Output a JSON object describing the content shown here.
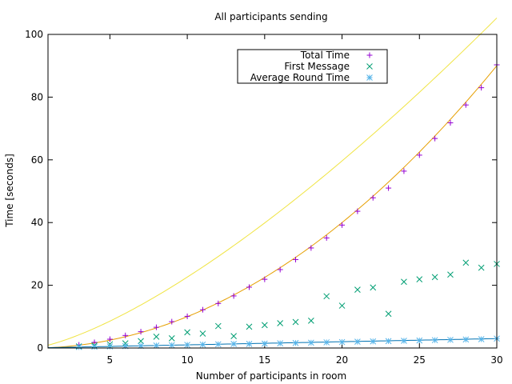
{
  "chart_data": {
    "type": "scatter",
    "title": "All participants sending",
    "xlabel": "Number of participants in room",
    "ylabel": "Time [seconds]",
    "xlim": [
      1,
      30
    ],
    "ylim": [
      0,
      100
    ],
    "x_ticks": [
      5,
      10,
      15,
      20,
      25,
      30
    ],
    "y_ticks": [
      0,
      20,
      40,
      60,
      80,
      100
    ],
    "grid": false,
    "legend_position": "top-center",
    "x": [
      3,
      4,
      5,
      6,
      7,
      8,
      9,
      10,
      11,
      12,
      13,
      14,
      15,
      16,
      17,
      18,
      19,
      20,
      21,
      22,
      23,
      24,
      25,
      26,
      27,
      28,
      29,
      30
    ],
    "series": [
      {
        "name": "Total Time",
        "marker": "plus",
        "color": "#9400d3",
        "values": [
          1.0,
          1.8,
          2.8,
          4.0,
          5.2,
          6.6,
          8.4,
          10.1,
          12.2,
          14.2,
          16.6,
          19.4,
          21.9,
          25.0,
          28.2,
          31.9,
          35.1,
          39.2,
          43.6,
          47.9,
          51.0,
          56.4,
          61.5,
          66.8,
          71.8,
          77.5,
          83.0,
          90.3
        ],
        "fit_color": "#e69f00",
        "fit": {
          "a": 0.1,
          "p": 2
        }
      },
      {
        "name": "First Message",
        "marker": "cross",
        "color": "#009e73",
        "values": [
          0.5,
          0.8,
          1.2,
          1.5,
          2.2,
          3.6,
          3.1,
          5.0,
          4.6,
          7.0,
          3.8,
          6.8,
          7.3,
          7.9,
          8.3,
          8.7,
          16.5,
          13.5,
          18.6,
          19.3,
          10.9,
          21.1,
          21.9,
          22.6,
          23.4,
          27.2,
          25.6,
          26.8
        ],
        "fit_color": "#f0e442",
        "fit": {
          "a": 0.9,
          "p": 1.4
        }
      },
      {
        "name": "Average Round Time",
        "marker": "star",
        "color": "#56b4e9",
        "values": [
          0.3,
          0.4,
          0.5,
          0.6,
          0.7,
          0.8,
          0.9,
          1.0,
          1.1,
          1.2,
          1.3,
          1.3,
          1.4,
          1.5,
          1.6,
          1.7,
          1.8,
          1.9,
          2.0,
          2.1,
          2.2,
          2.3,
          2.4,
          2.5,
          2.6,
          2.7,
          2.8,
          3.0
        ],
        "fit_color": "#0072b2",
        "fit": {
          "a": 0.1,
          "p": 1.0
        }
      }
    ]
  }
}
